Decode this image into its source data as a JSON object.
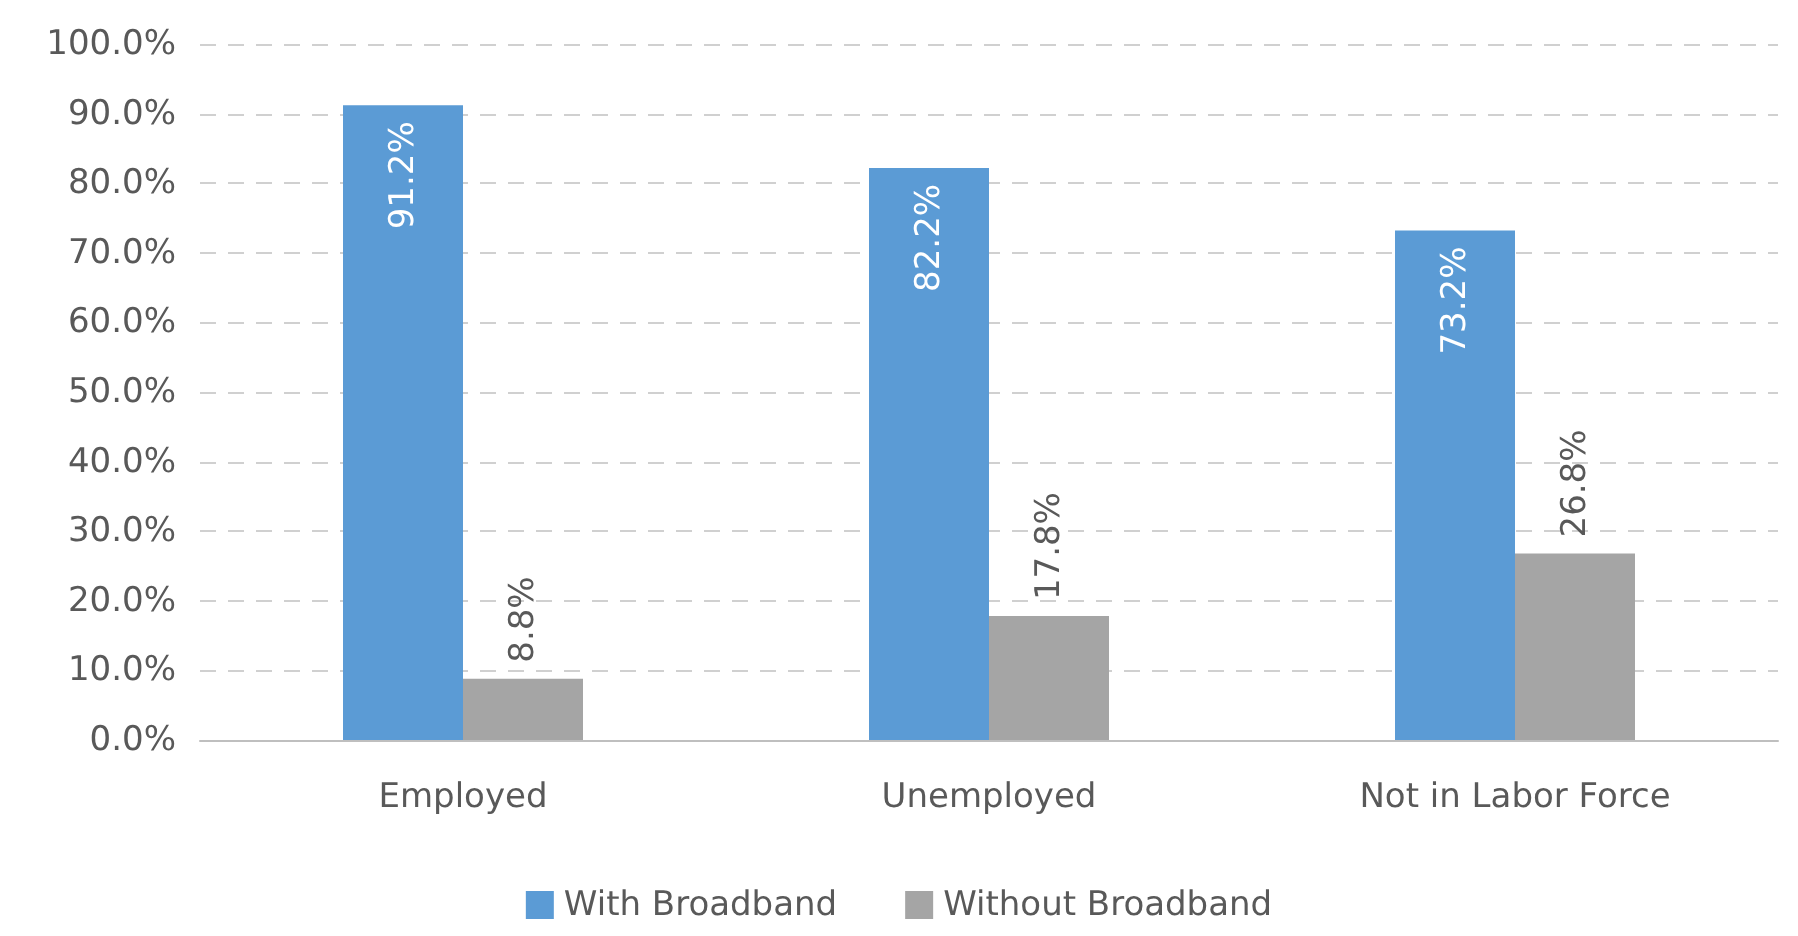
{
  "chart_data": {
    "type": "bar",
    "categories": [
      "Employed",
      "Unemployed",
      "Not in Labor Force"
    ],
    "series": [
      {
        "name": "With Broadband",
        "color": "#5b9bd5",
        "values": [
          91.2,
          82.2,
          73.2
        ],
        "value_labels": [
          "91.2%",
          "82.2%",
          "73.2%"
        ]
      },
      {
        "name": "Without Broadband",
        "color": "#a5a5a5",
        "values": [
          8.8,
          17.8,
          26.8
        ],
        "value_labels": [
          "8.8%",
          "17.8%",
          "26.8%"
        ]
      }
    ],
    "ylim": [
      0,
      100
    ],
    "yticks": [
      {
        "value": 0,
        "label": "0.0%"
      },
      {
        "value": 10,
        "label": "10.0%"
      },
      {
        "value": 20,
        "label": "20.0%"
      },
      {
        "value": 30,
        "label": "30.0%"
      },
      {
        "value": 40,
        "label": "40.0%"
      },
      {
        "value": 50,
        "label": "50.0%"
      },
      {
        "value": 60,
        "label": "60.0%"
      },
      {
        "value": 70,
        "label": "70.0%"
      },
      {
        "value": 80,
        "label": "80.0%"
      },
      {
        "value": 90,
        "label": "90.0%"
      },
      {
        "value": 100,
        "label": "100.0%"
      }
    ],
    "grid": "y",
    "legend": "bottom"
  }
}
